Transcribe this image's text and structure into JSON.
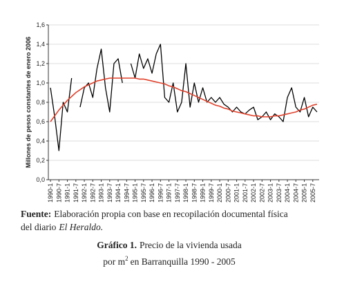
{
  "chart_data": {
    "type": "line",
    "y_label": "Millones de pesos constantes de enero 2006",
    "categories": [
      "1990-1",
      null,
      "1990-7",
      null,
      "1991-1",
      null,
      "1991-7",
      null,
      "1992-1",
      null,
      "1992-7",
      null,
      "1993-1",
      null,
      "1993-7",
      null,
      "1994-1",
      null,
      "1994-7",
      null,
      "1995-1",
      null,
      "1995-7",
      null,
      "1996-1",
      null,
      "1996-7",
      null,
      "1997-1",
      null,
      "1997-7",
      null,
      "1998-1",
      null,
      "1998-7",
      null,
      "1999-1",
      null,
      "1999-7",
      null,
      "2000-1",
      null,
      "2000-7",
      null,
      "2001-1",
      null,
      "2001-7",
      null,
      "2002-1",
      null,
      "2002-7",
      null,
      "2003-1",
      null,
      "2003-7",
      null,
      "2004-1",
      null,
      "2004-7",
      null,
      "2005-1",
      null,
      "2005-7",
      null
    ],
    "series": [
      {
        "color": "#000000",
        "values": [
          0.95,
          0.65,
          0.3,
          0.8,
          0.7,
          1.05,
          null,
          0.75,
          0.95,
          1.0,
          0.85,
          1.15,
          1.35,
          0.95,
          0.7,
          1.2,
          1.25,
          1.0,
          null,
          1.2,
          1.05,
          1.3,
          1.15,
          1.25,
          1.1,
          1.3,
          1.4,
          0.85,
          0.8,
          1.0,
          0.7,
          0.8,
          1.2,
          0.75,
          1.0,
          0.8,
          0.95,
          0.8,
          0.85,
          0.8,
          0.85,
          0.78,
          0.75,
          0.7,
          0.75,
          0.7,
          0.68,
          0.72,
          0.75,
          0.62,
          0.65,
          0.7,
          0.62,
          0.68,
          0.65,
          0.6,
          0.85,
          0.95,
          0.75,
          0.7,
          0.85,
          0.65,
          0.75,
          0.7
        ]
      },
      {
        "color": "#e0402a",
        "values": [
          0.6,
          0.66,
          0.72,
          0.77,
          0.82,
          0.86,
          0.9,
          0.93,
          0.96,
          0.98,
          1.0,
          1.02,
          1.03,
          1.04,
          1.05,
          1.05,
          1.05,
          1.05,
          1.05,
          1.05,
          1.05,
          1.04,
          1.04,
          1.03,
          1.02,
          1.01,
          1.0,
          0.99,
          0.97,
          0.96,
          0.94,
          0.92,
          0.91,
          0.89,
          0.87,
          0.85,
          0.83,
          0.81,
          0.79,
          0.77,
          0.76,
          0.74,
          0.73,
          0.71,
          0.7,
          0.69,
          0.68,
          0.67,
          0.66,
          0.66,
          0.65,
          0.65,
          0.65,
          0.66,
          0.66,
          0.67,
          0.68,
          0.69,
          0.7,
          0.72,
          0.73,
          0.75,
          0.77,
          0.78
        ]
      }
    ],
    "ylim": [
      0,
      1.6
    ],
    "yticks": [
      {
        "value": 0,
        "label": "0,0"
      },
      {
        "value": 0.2,
        "label": "0,2"
      },
      {
        "value": 0.4,
        "label": "0,4"
      },
      {
        "value": 0.6,
        "label": "0,6"
      },
      {
        "value": 0.8,
        "label": "0,8"
      },
      {
        "value": 1.0,
        "label": "1,0"
      },
      {
        "value": 1.2,
        "label": "1,2"
      },
      {
        "value": 1.4,
        "label": "1,4"
      },
      {
        "value": 1.6,
        "label": "1,6"
      }
    ],
    "grid": true,
    "source_label": "Fuente:",
    "source_text": "Elaboración propia con base en recopilación documental física",
    "source_text_2": "del diario",
    "source_italic": "El Heraldo.",
    "caption_label": "Gráfico 1.",
    "caption_text": "Precio de la vivienda usada",
    "caption_text_2": "por m",
    "caption_sup": "2",
    "caption_text_3": "en Barranquilla 1990 - 2005"
  }
}
